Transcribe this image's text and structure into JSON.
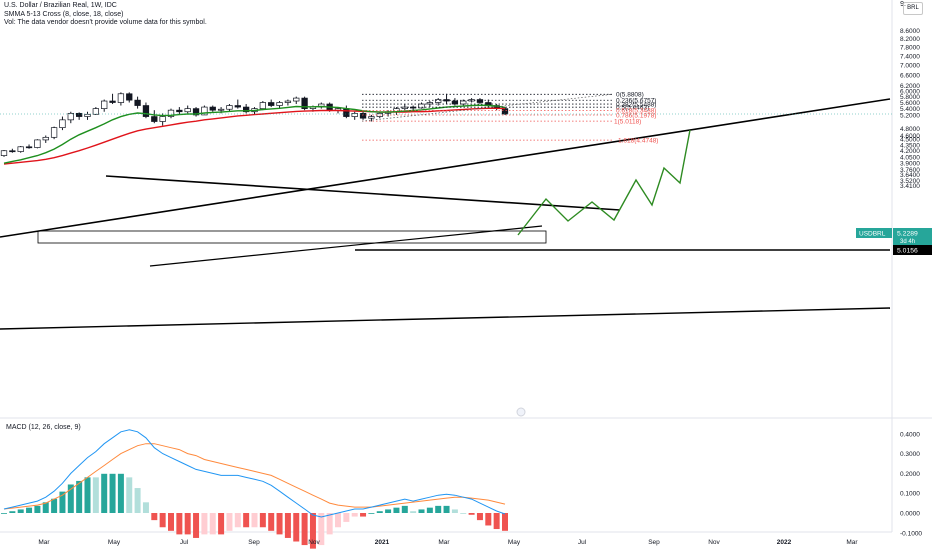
{
  "header": {
    "title": "U.S. Dollar / Brazilian Real, 1W, IDC",
    "indicator": "SMMA 5-13 Cross (8, close, 18, close)",
    "volume_note": "Vol: The data vendor doesn't provide volume data for this symbol."
  },
  "top_right": {
    "nine": "9.",
    "currency": "BRL"
  },
  "macd_label": "MACD (12, 26, close, 9)",
  "badge": {
    "symbol": "USDBRL",
    "price": "5.2289",
    "countdown": "3d 4h"
  },
  "level_label": "5.0156",
  "colors": {
    "up": "#26a69a",
    "down": "#ef5350",
    "fast_ma": "#1e8f1e",
    "slow_ma": "#e0141b",
    "macd": "#2196f3",
    "signal": "#ff8a3d",
    "projection": "#2e8b22"
  },
  "chart_data": [
    {
      "type": "candlestick",
      "title": "U.S. Dollar / Brazilian Real, 1W, IDC",
      "y_axis_scale": "log",
      "ylim": [
        3.4,
        9.0
      ],
      "y_ticks": [
        "8.6000",
        "8.2000",
        "7.8000",
        "7.4000",
        "7.0000",
        "6.6000",
        "6.2000",
        "6.0000",
        "5.8000",
        "5.6000",
        "5.4000",
        "5.2000",
        "4.8000",
        "4.6000",
        "4.5000",
        "4.3500",
        "4.2000",
        "4.0500",
        "3.9000",
        "3.7600",
        "3.6400",
        "3.5200",
        "3.4100"
      ],
      "x_ticks": [
        "Mar",
        "May",
        "Jul",
        "Sep",
        "Nov",
        "2021",
        "Mar",
        "May",
        "Jul",
        "Sep",
        "Nov",
        "2022",
        "Mar"
      ],
      "candles": [
        [
          4.08,
          4.22,
          4.05,
          4.2
        ],
        [
          4.2,
          4.25,
          4.15,
          4.18
        ],
        [
          4.18,
          4.32,
          4.15,
          4.3
        ],
        [
          4.3,
          4.36,
          4.25,
          4.28
        ],
        [
          4.28,
          4.5,
          4.26,
          4.48
        ],
        [
          4.48,
          4.6,
          4.4,
          4.55
        ],
        [
          4.55,
          4.85,
          4.5,
          4.82
        ],
        [
          4.82,
          5.15,
          4.75,
          5.05
        ],
        [
          5.05,
          5.3,
          4.95,
          5.25
        ],
        [
          5.25,
          5.28,
          5.05,
          5.15
        ],
        [
          5.15,
          5.3,
          5.05,
          5.22
        ],
        [
          5.22,
          5.45,
          5.2,
          5.4
        ],
        [
          5.4,
          5.7,
          5.3,
          5.65
        ],
        [
          5.65,
          5.9,
          5.55,
          5.6
        ],
        [
          5.6,
          5.95,
          5.5,
          5.9
        ],
        [
          5.9,
          5.95,
          5.6,
          5.68
        ],
        [
          5.68,
          5.8,
          5.4,
          5.5
        ],
        [
          5.5,
          5.6,
          5.1,
          5.15
        ],
        [
          5.15,
          5.35,
          4.95,
          5.0
        ],
        [
          5.0,
          5.25,
          4.88,
          5.15
        ],
        [
          5.15,
          5.4,
          5.1,
          5.35
        ],
        [
          5.35,
          5.45,
          5.2,
          5.3
        ],
        [
          5.3,
          5.5,
          5.25,
          5.4
        ],
        [
          5.4,
          5.45,
          5.15,
          5.2
        ],
        [
          5.2,
          5.5,
          5.2,
          5.45
        ],
        [
          5.45,
          5.5,
          5.3,
          5.35
        ],
        [
          5.35,
          5.45,
          5.25,
          5.38
        ],
        [
          5.38,
          5.55,
          5.3,
          5.5
        ],
        [
          5.5,
          5.7,
          5.4,
          5.45
        ],
        [
          5.45,
          5.55,
          5.25,
          5.3
        ],
        [
          5.3,
          5.45,
          5.2,
          5.4
        ],
        [
          5.4,
          5.65,
          5.35,
          5.6
        ],
        [
          5.6,
          5.7,
          5.45,
          5.5
        ],
        [
          5.5,
          5.65,
          5.4,
          5.6
        ],
        [
          5.6,
          5.7,
          5.5,
          5.65
        ],
        [
          5.65,
          5.8,
          5.55,
          5.75
        ],
        [
          5.75,
          5.8,
          5.35,
          5.4
        ],
        [
          5.4,
          5.5,
          5.3,
          5.45
        ],
        [
          5.45,
          5.6,
          5.4,
          5.55
        ],
        [
          5.55,
          5.6,
          5.3,
          5.35
        ],
        [
          5.35,
          5.45,
          5.25,
          5.4
        ],
        [
          5.4,
          5.5,
          5.1,
          5.15
        ],
        [
          5.15,
          5.3,
          5.05,
          5.25
        ],
        [
          5.25,
          5.3,
          5.05,
          5.1
        ],
        [
          5.1,
          5.2,
          5.0,
          5.15
        ],
        [
          5.15,
          5.3,
          5.1,
          5.25
        ],
        [
          5.25,
          5.35,
          5.15,
          5.3
        ],
        [
          5.3,
          5.45,
          5.2,
          5.4
        ],
        [
          5.4,
          5.55,
          5.35,
          5.45
        ],
        [
          5.45,
          5.5,
          5.3,
          5.42
        ],
        [
          5.42,
          5.6,
          5.4,
          5.55
        ],
        [
          5.55,
          5.65,
          5.45,
          5.6
        ],
        [
          5.6,
          5.75,
          5.5,
          5.7
        ],
        [
          5.7,
          5.9,
          5.55,
          5.65
        ],
        [
          5.65,
          5.75,
          5.5,
          5.55
        ],
        [
          5.55,
          5.7,
          5.5,
          5.65
        ],
        [
          5.65,
          5.75,
          5.6,
          5.7
        ],
        [
          5.7,
          5.75,
          5.55,
          5.6
        ],
        [
          5.6,
          5.7,
          5.45,
          5.5
        ],
        [
          5.5,
          5.55,
          5.35,
          5.4
        ],
        [
          5.4,
          5.45,
          5.2,
          5.23
        ]
      ],
      "series": [
        {
          "name": "SMMA 8",
          "values": [
            3.9,
            3.94,
            3.98,
            4.03,
            4.08,
            4.15,
            4.24,
            4.36,
            4.5,
            4.62,
            4.72,
            4.82,
            4.93,
            5.05,
            5.15,
            5.22,
            5.26,
            5.24,
            5.2,
            5.18,
            5.19,
            5.21,
            5.23,
            5.23,
            5.26,
            5.28,
            5.29,
            5.31,
            5.33,
            5.33,
            5.34,
            5.37,
            5.39,
            5.41,
            5.44,
            5.47,
            5.46,
            5.46,
            5.47,
            5.45,
            5.44,
            5.4,
            5.37,
            5.33,
            5.3,
            5.29,
            5.29,
            5.3,
            5.32,
            5.34,
            5.36,
            5.39,
            5.42,
            5.45,
            5.47,
            5.48,
            5.5,
            5.51,
            5.5,
            5.48,
            5.44
          ]
        },
        {
          "name": "SMMA 18",
          "values": [
            3.88,
            3.9,
            3.92,
            3.94,
            3.96,
            3.99,
            4.03,
            4.08,
            4.14,
            4.2,
            4.27,
            4.34,
            4.42,
            4.5,
            4.58,
            4.66,
            4.73,
            4.78,
            4.82,
            4.86,
            4.9,
            4.94,
            4.98,
            5.01,
            5.05,
            5.08,
            5.11,
            5.14,
            5.17,
            5.19,
            5.21,
            5.23,
            5.25,
            5.27,
            5.29,
            5.31,
            5.32,
            5.33,
            5.34,
            5.34,
            5.34,
            5.33,
            5.32,
            5.31,
            5.3,
            5.29,
            5.29,
            5.29,
            5.29,
            5.3,
            5.3,
            5.31,
            5.33,
            5.34,
            5.36,
            5.37,
            5.39,
            5.4,
            5.41,
            5.41,
            5.4
          ]
        }
      ],
      "fib_levels": [
        {
          "label": "0(5.8808)",
          "value": 5.8808
        },
        {
          "label": "0.236(5.6757)",
          "value": 5.6757
        },
        {
          "label": "0.382(5.5488)",
          "value": 5.5488
        },
        {
          "label": "0.5(5.4463)",
          "value": 5.4463
        },
        {
          "label": "0.618(5.3438)",
          "value": 5.3438
        },
        {
          "label": "0.786(5.1978)",
          "value": 5.1978
        },
        {
          "label": "1(5.0118)",
          "value": 5.0118
        },
        {
          "label": "1.618(4.4748)",
          "value": 4.4748
        }
      ],
      "horizontal_levels": [
        5.0156,
        4.39
      ],
      "last_price": 5.2289,
      "projection_path": [
        5.25,
        5.65,
        5.4,
        5.7,
        5.45,
        5.95,
        5.6,
        6.1,
        5.85,
        6.6,
        6.65
      ]
    },
    {
      "type": "macd",
      "title": "MACD (12, 26, close, 9)",
      "ylim": [
        -0.1,
        0.45
      ],
      "y_ticks": [
        "0.4000",
        "0.3000",
        "0.2000",
        "0.1000",
        "0.0000",
        "-0.1000"
      ],
      "macd": [
        0.02,
        0.03,
        0.04,
        0.05,
        0.06,
        0.08,
        0.11,
        0.15,
        0.2,
        0.24,
        0.28,
        0.31,
        0.35,
        0.38,
        0.41,
        0.42,
        0.41,
        0.38,
        0.33,
        0.3,
        0.28,
        0.26,
        0.24,
        0.22,
        0.21,
        0.2,
        0.19,
        0.19,
        0.19,
        0.18,
        0.17,
        0.16,
        0.14,
        0.11,
        0.08,
        0.05,
        0.02,
        -0.01,
        -0.02,
        -0.01,
        0.0,
        0.01,
        0.02,
        0.02,
        0.03,
        0.04,
        0.05,
        0.06,
        0.07,
        0.06,
        0.07,
        0.08,
        0.09,
        0.095,
        0.09,
        0.08,
        0.07,
        0.05,
        0.03,
        0.01,
        -0.005
      ],
      "signal": [
        0.02,
        0.025,
        0.03,
        0.035,
        0.04,
        0.05,
        0.07,
        0.09,
        0.12,
        0.15,
        0.18,
        0.21,
        0.24,
        0.27,
        0.3,
        0.32,
        0.34,
        0.35,
        0.35,
        0.34,
        0.33,
        0.32,
        0.3,
        0.29,
        0.27,
        0.26,
        0.25,
        0.24,
        0.23,
        0.22,
        0.21,
        0.2,
        0.19,
        0.17,
        0.15,
        0.13,
        0.11,
        0.09,
        0.07,
        0.05,
        0.04,
        0.035,
        0.03,
        0.03,
        0.03,
        0.035,
        0.04,
        0.045,
        0.05,
        0.055,
        0.06,
        0.065,
        0.07,
        0.075,
        0.08,
        0.08,
        0.075,
        0.07,
        0.065,
        0.055,
        0.045
      ]
    }
  ]
}
